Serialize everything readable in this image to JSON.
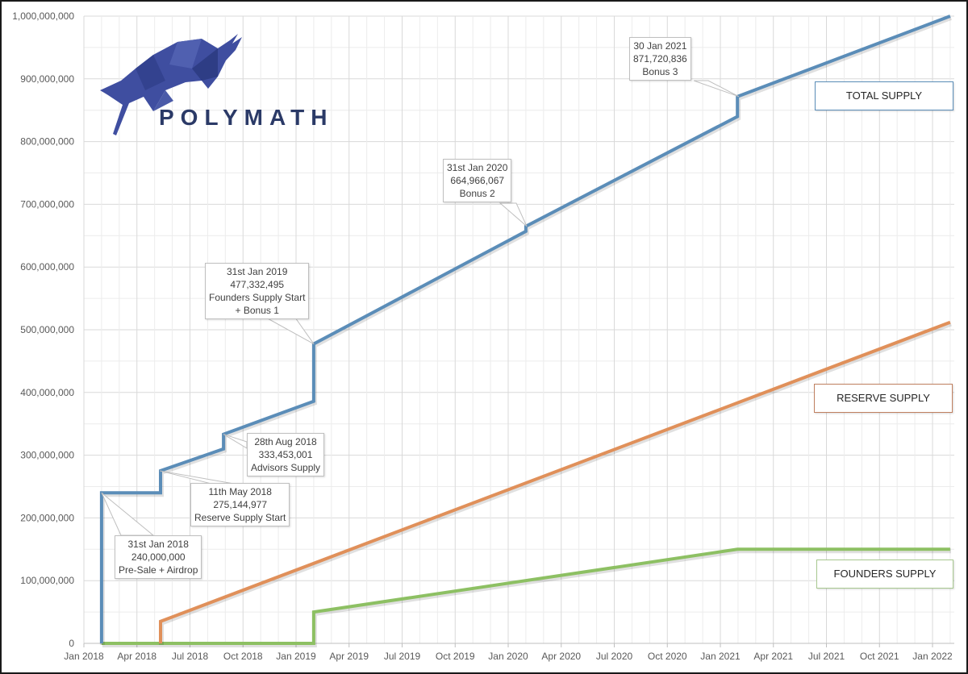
{
  "logo": {
    "text": "POLYMATH",
    "color": "#3f4ea0"
  },
  "chart_data": {
    "type": "line",
    "title": "",
    "xlabel": "",
    "ylabel": "",
    "ylim": [
      0,
      1000000000
    ],
    "grid": true,
    "x_ticks": [
      "Jan 2018",
      "Apr 2018",
      "Jul 2018",
      "Oct 2018",
      "Jan 2019",
      "Apr 2019",
      "Jul 2019",
      "Oct 2019",
      "Jan 2020",
      "Apr 2020",
      "Jul 2020",
      "Oct 2020",
      "Jan 2021",
      "Apr 2021",
      "Jul 2021",
      "Oct 2021",
      "Jan 2022"
    ],
    "y_ticks": [
      "0",
      "100,000,000",
      "200,000,000",
      "300,000,000",
      "400,000,000",
      "500,000,000",
      "600,000,000",
      "700,000,000",
      "800,000,000",
      "900,000,000",
      "1,000,000,000"
    ],
    "series": [
      {
        "name": "TOTAL SUPPLY",
        "color": "#5b8db8",
        "points": [
          [
            "2018-01-31",
            0
          ],
          [
            "2018-01-31",
            240000000
          ],
          [
            "2018-05-11",
            240000000
          ],
          [
            "2018-05-11",
            275144977
          ],
          [
            "2018-08-28",
            310000000
          ],
          [
            "2018-08-28",
            333453001
          ],
          [
            "2019-01-31",
            386000000
          ],
          [
            "2019-01-31",
            477332495
          ],
          [
            "2020-01-31",
            657000000
          ],
          [
            "2020-01-31",
            664966067
          ],
          [
            "2021-01-30",
            840000000
          ],
          [
            "2021-01-30",
            871720836
          ],
          [
            "2022-01-31",
            1000000000
          ]
        ]
      },
      {
        "name": "RESERVE SUPPLY",
        "color": "#e0905a",
        "points": [
          [
            "2018-05-11",
            0
          ],
          [
            "2018-05-11",
            35000000
          ],
          [
            "2022-01-31",
            512000000
          ]
        ]
      },
      {
        "name": "FOUNDERS SUPPLY",
        "color": "#8dc063",
        "points": [
          [
            "2018-01-31",
            0
          ],
          [
            "2019-01-31",
            0
          ],
          [
            "2019-01-31",
            50000000
          ],
          [
            "2021-01-30",
            150000000
          ],
          [
            "2022-01-31",
            150000000
          ]
        ]
      }
    ],
    "annotations": [
      {
        "date": "31st Jan 2018",
        "value": "240,000,000",
        "label": "Pre-Sale + Airdrop"
      },
      {
        "date": "11th May 2018",
        "value": "275,144,977",
        "label": "Reserve Supply Start"
      },
      {
        "date": "28th Aug 2018",
        "value": "333,453,001",
        "label": "Advisors Supply"
      },
      {
        "date": "31st Jan 2019",
        "value": "477,332,495",
        "label": "Founders Supply Start",
        "label2": "+ Bonus 1"
      },
      {
        "date": "31st Jan 2020",
        "value": "664,966,067",
        "label": "Bonus 2"
      },
      {
        "date": "30 Jan 2021",
        "value": "871,720,836",
        "label": "Bonus 3"
      }
    ],
    "legend": [
      "TOTAL SUPPLY",
      "RESERVE SUPPLY",
      "FOUNDERS SUPPLY"
    ]
  }
}
